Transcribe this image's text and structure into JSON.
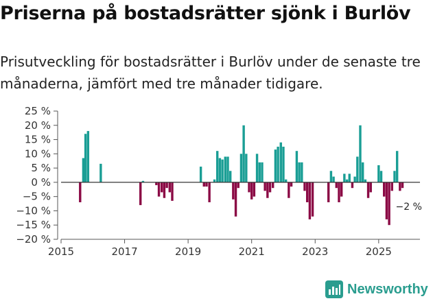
{
  "title": "Priserna på bostadsrätter sjönk i Burlöv",
  "subtitle": "Prisutveckling för bostadsrätter i Burlöv under de senaste tre månaderna, jämfört med tre månader tidigare.",
  "brand": {
    "name": "Newsworthy",
    "color": "#2a9d8f"
  },
  "colors": {
    "positive": "#1a9e95",
    "negative": "#8b0a45",
    "zero_line": "#333333"
  },
  "chart_data": {
    "type": "bar",
    "x_type": "time",
    "xlim": [
      2015.0,
      2026.3
    ],
    "ylim": [
      -20,
      25
    ],
    "y_ticks": [
      25,
      20,
      15,
      10,
      5,
      0,
      -5,
      -10,
      -15,
      -20
    ],
    "y_tick_labels": [
      "25 %",
      "20 %",
      "15 %",
      "10 %",
      "5 %",
      "0 %",
      "−5 %",
      "−10 %",
      "−15 %",
      "−20 %"
    ],
    "x_ticks": [
      2015,
      2017,
      2019,
      2021,
      2023,
      2025
    ],
    "x_tick_labels": [
      "2015",
      "2017",
      "2019",
      "2021",
      "2023",
      "2025"
    ],
    "last_value_label": "−2 %",
    "bars": [
      {
        "x": 2015.6,
        "y": -7
      },
      {
        "x": 2015.7,
        "y": 8.5
      },
      {
        "x": 2015.77,
        "y": 17
      },
      {
        "x": 2015.85,
        "y": 18
      },
      {
        "x": 2016.25,
        "y": 6.5
      },
      {
        "x": 2017.5,
        "y": -8
      },
      {
        "x": 2017.58,
        "y": 0.5
      },
      {
        "x": 2018.0,
        "y": -1
      },
      {
        "x": 2018.08,
        "y": -5
      },
      {
        "x": 2018.17,
        "y": -3.5
      },
      {
        "x": 2018.25,
        "y": -5.5
      },
      {
        "x": 2018.33,
        "y": -2
      },
      {
        "x": 2018.42,
        "y": -3.5
      },
      {
        "x": 2018.5,
        "y": -6.5
      },
      {
        "x": 2019.4,
        "y": 5.5
      },
      {
        "x": 2019.5,
        "y": -1.5
      },
      {
        "x": 2019.58,
        "y": -1.5
      },
      {
        "x": 2019.67,
        "y": -7
      },
      {
        "x": 2019.83,
        "y": 1
      },
      {
        "x": 2019.92,
        "y": 11
      },
      {
        "x": 2020.0,
        "y": 8.5
      },
      {
        "x": 2020.08,
        "y": 8
      },
      {
        "x": 2020.17,
        "y": 9
      },
      {
        "x": 2020.25,
        "y": 9
      },
      {
        "x": 2020.33,
        "y": 4
      },
      {
        "x": 2020.42,
        "y": -6
      },
      {
        "x": 2020.5,
        "y": -12
      },
      {
        "x": 2020.58,
        "y": -2
      },
      {
        "x": 2020.67,
        "y": 10
      },
      {
        "x": 2020.75,
        "y": 20
      },
      {
        "x": 2020.83,
        "y": 10
      },
      {
        "x": 2020.92,
        "y": -3.5
      },
      {
        "x": 2021.0,
        "y": -6
      },
      {
        "x": 2021.08,
        "y": -5
      },
      {
        "x": 2021.17,
        "y": 10
      },
      {
        "x": 2021.25,
        "y": 7
      },
      {
        "x": 2021.33,
        "y": 7
      },
      {
        "x": 2021.42,
        "y": -3
      },
      {
        "x": 2021.5,
        "y": -5.5
      },
      {
        "x": 2021.58,
        "y": -3.5
      },
      {
        "x": 2021.67,
        "y": -2
      },
      {
        "x": 2021.75,
        "y": 11.5
      },
      {
        "x": 2021.83,
        "y": 12.5
      },
      {
        "x": 2021.92,
        "y": 14
      },
      {
        "x": 2022.0,
        "y": 12.5
      },
      {
        "x": 2022.08,
        "y": 1
      },
      {
        "x": 2022.17,
        "y": -5.5
      },
      {
        "x": 2022.25,
        "y": -1.5
      },
      {
        "x": 2022.42,
        "y": 11
      },
      {
        "x": 2022.5,
        "y": 7
      },
      {
        "x": 2022.58,
        "y": 7
      },
      {
        "x": 2022.67,
        "y": -3
      },
      {
        "x": 2022.75,
        "y": -7
      },
      {
        "x": 2022.83,
        "y": -13
      },
      {
        "x": 2022.92,
        "y": -12
      },
      {
        "x": 2023.42,
        "y": -7
      },
      {
        "x": 2023.5,
        "y": 4
      },
      {
        "x": 2023.58,
        "y": 2
      },
      {
        "x": 2023.67,
        "y": -2
      },
      {
        "x": 2023.75,
        "y": -7
      },
      {
        "x": 2023.83,
        "y": -5
      },
      {
        "x": 2023.92,
        "y": 3
      },
      {
        "x": 2024.0,
        "y": 1
      },
      {
        "x": 2024.08,
        "y": 3
      },
      {
        "x": 2024.17,
        "y": -2
      },
      {
        "x": 2024.25,
        "y": 2
      },
      {
        "x": 2024.33,
        "y": 9
      },
      {
        "x": 2024.42,
        "y": 20
      },
      {
        "x": 2024.5,
        "y": 7
      },
      {
        "x": 2024.58,
        "y": 1
      },
      {
        "x": 2024.67,
        "y": -5.5
      },
      {
        "x": 2024.75,
        "y": -3.5
      },
      {
        "x": 2025.0,
        "y": 6
      },
      {
        "x": 2025.08,
        "y": 4
      },
      {
        "x": 2025.17,
        "y": -5
      },
      {
        "x": 2025.25,
        "y": -13
      },
      {
        "x": 2025.33,
        "y": -15
      },
      {
        "x": 2025.42,
        "y": -3
      },
      {
        "x": 2025.5,
        "y": 4
      },
      {
        "x": 2025.58,
        "y": 11
      },
      {
        "x": 2025.67,
        "y": -3
      },
      {
        "x": 2025.75,
        "y": -2
      }
    ]
  }
}
